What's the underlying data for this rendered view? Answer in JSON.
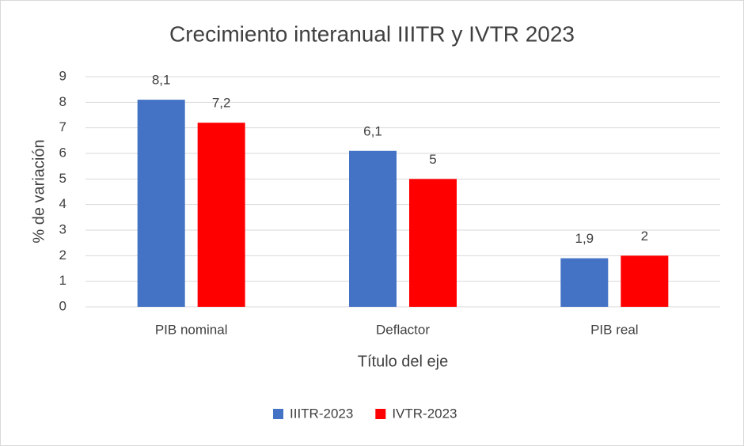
{
  "chart_data": {
    "type": "bar",
    "title": "Crecimiento interanual IIITR y IVTR 2023",
    "x_label": "Título del eje",
    "y_label": "% de variación",
    "categories": [
      "PIB nominal",
      "Deflactor",
      "PIB real"
    ],
    "series": [
      {
        "name": "IIITR-2023",
        "color": "#4472c4",
        "values": [
          8.1,
          6.1,
          1.9
        ],
        "value_labels": [
          "8,1",
          "6,1",
          "1,9"
        ]
      },
      {
        "name": "IVTR-2023",
        "color": "#ff0000",
        "values": [
          7.2,
          5,
          2
        ],
        "value_labels": [
          "7,2",
          "5",
          "2"
        ]
      }
    ],
    "ylim": [
      0,
      9
    ],
    "yticks": [
      0,
      1,
      2,
      3,
      4,
      5,
      6,
      7,
      8,
      9
    ],
    "grid": true,
    "legend": "bottom"
  }
}
